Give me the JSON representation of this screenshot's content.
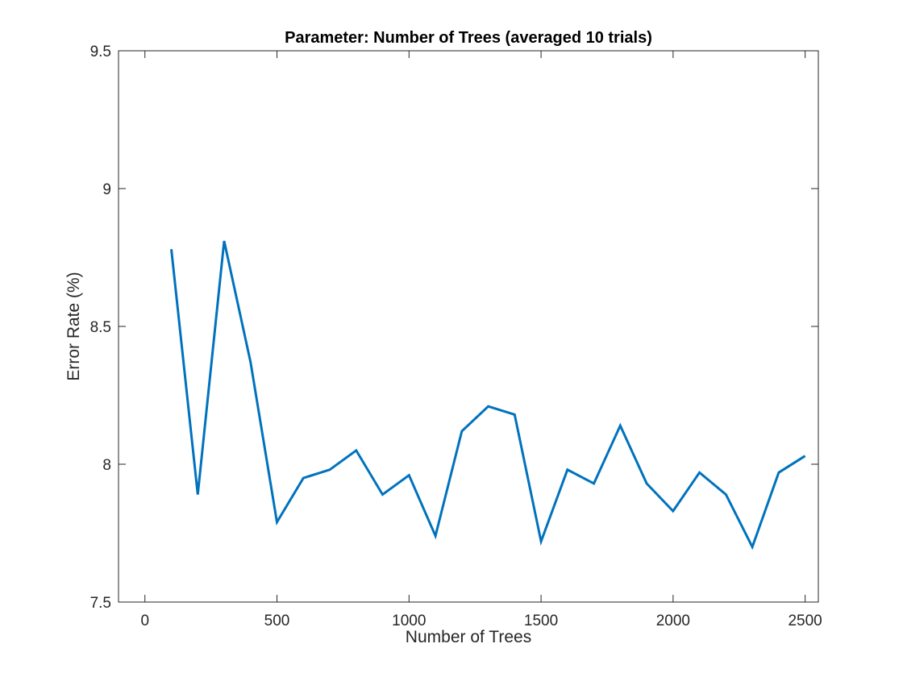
{
  "chart_data": {
    "type": "line",
    "title": "Parameter: Number of Trees (averaged 10 trials)",
    "xlabel": "Number of Trees",
    "ylabel": "Error Rate (%)",
    "xlim": [
      -100,
      2550
    ],
    "ylim": [
      7.5,
      9.5
    ],
    "xticks": [
      0,
      500,
      1000,
      1500,
      2000,
      2500
    ],
    "xtick_labels": [
      "0",
      "500",
      "1000",
      "1500",
      "2000",
      "2500"
    ],
    "yticks": [
      7.5,
      8,
      8.5,
      9,
      9.5
    ],
    "ytick_labels": [
      "7.5",
      "8",
      "8.5",
      "9",
      "9.5"
    ],
    "grid": false,
    "line_color": "#0072BD",
    "series": [
      {
        "x": [
          100,
          200,
          300,
          400,
          500,
          600,
          700,
          800,
          900,
          1000,
          1100,
          1200,
          1300,
          1400,
          1500,
          1600,
          1700,
          1800,
          1900,
          2000,
          2100,
          2200,
          2300,
          2400,
          2500
        ],
        "values": [
          8.78,
          7.89,
          8.81,
          8.37,
          7.79,
          7.95,
          7.98,
          8.05,
          7.89,
          7.96,
          7.74,
          8.12,
          8.21,
          8.18,
          7.72,
          7.98,
          7.93,
          8.14,
          7.93,
          7.83,
          7.97,
          7.89,
          7.7,
          7.97,
          8.03
        ]
      }
    ]
  }
}
